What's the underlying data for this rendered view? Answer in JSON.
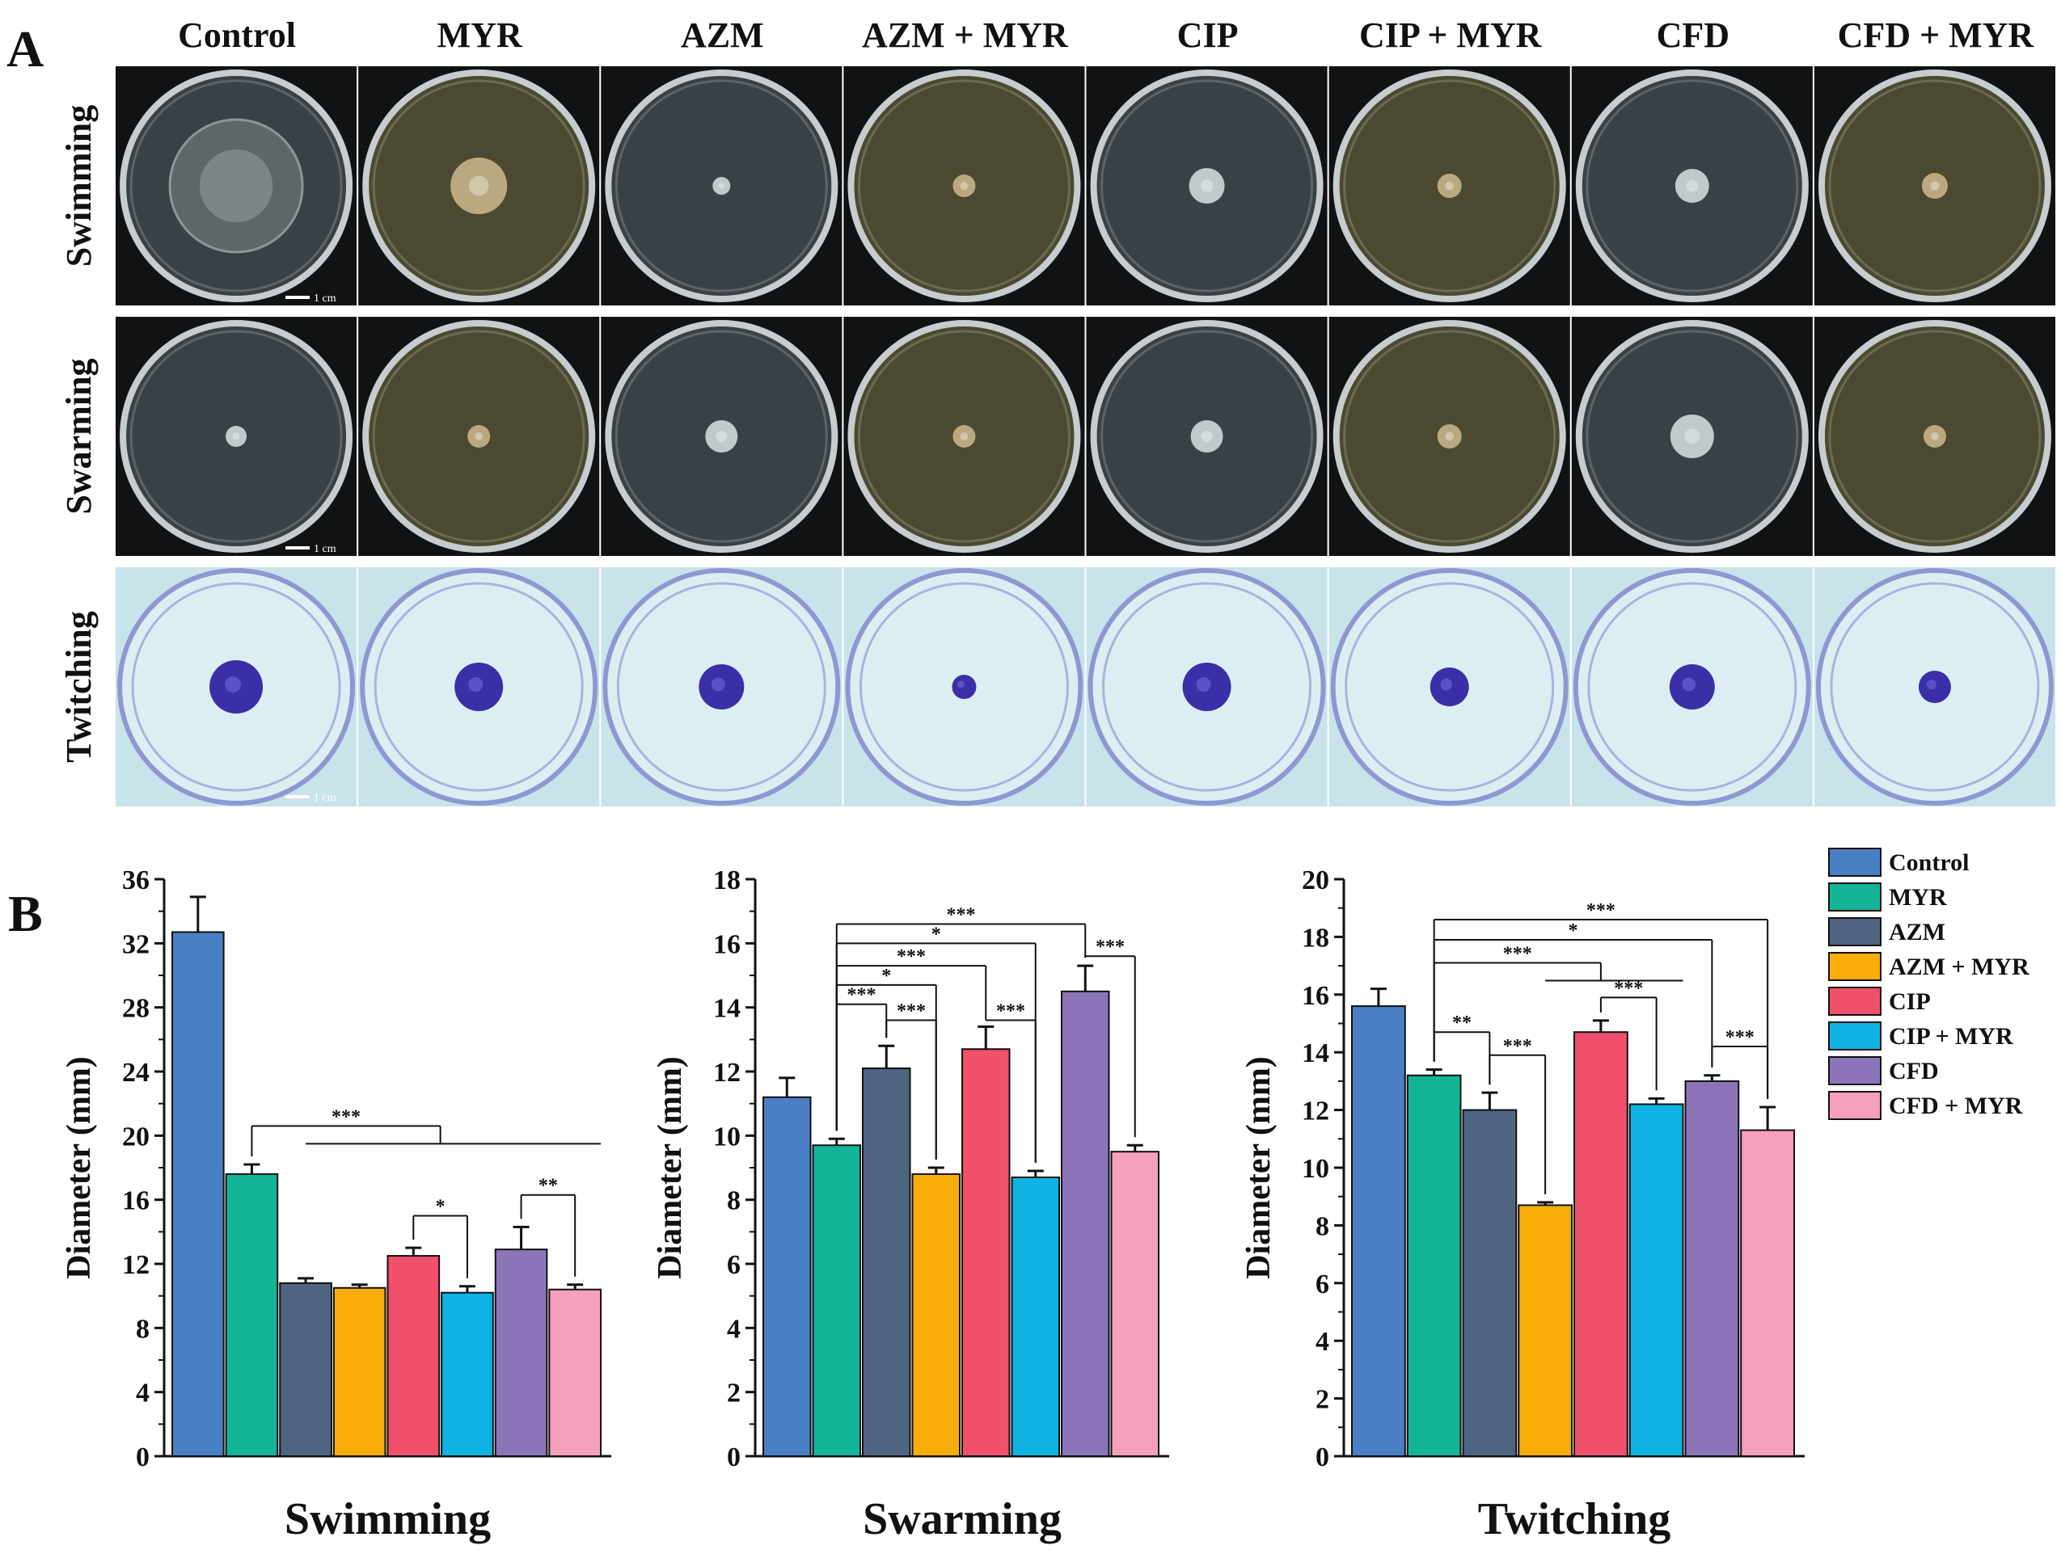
{
  "panel_a": {
    "label": "A",
    "columns": [
      "Control",
      "MYR",
      "AZM",
      "AZM +  MYR",
      "CIP",
      "CIP + MYR",
      "CFD",
      "CFD + MYR"
    ],
    "rows": [
      "Swimming",
      "Swarming",
      "Twitching"
    ],
    "scale_bar_label": "1 cm",
    "plate_colors": {
      "dark_background": "#101214",
      "twitching_background": "#c9e3ea",
      "agar_plain": "#3a4146",
      "agar_myr": "#4b4a30",
      "stain": "#3b2fa8"
    }
  },
  "panel_b": {
    "label": "B",
    "y_axis_title": "Diameter (mm)",
    "legend": [
      "Control",
      "MYR",
      "AZM",
      "AZM + MYR",
      "CIP",
      "CIP + MYR",
      "CFD",
      "CFD + MYR"
    ],
    "colors": [
      "#4a7fc4",
      "#14b497",
      "#4f6480",
      "#f8ad08",
      "#f0506a",
      "#0fb3e2",
      "#8c74b8",
      "#f6a0bb"
    ]
  },
  "chart_data": [
    {
      "type": "bar",
      "title": "Swimming",
      "xlabel": "Swimming",
      "ylabel": "Diameter (mm)",
      "ylim": [
        0,
        36
      ],
      "yticks": [
        0,
        4,
        8,
        12,
        16,
        20,
        24,
        28,
        32,
        36
      ],
      "categories": [
        "Control",
        "MYR",
        "AZM",
        "AZM + MYR",
        "CIP",
        "CIP + MYR",
        "CFD",
        "CFD + MYR"
      ],
      "values": [
        32.7,
        17.6,
        10.8,
        10.5,
        12.5,
        10.2,
        12.9,
        10.4
      ],
      "errors": [
        2.2,
        0.6,
        0.3,
        0.2,
        0.5,
        0.4,
        1.4,
        0.3
      ],
      "significance": [
        {
          "label": "***",
          "type": "fan",
          "from": 1,
          "to": [
            2,
            3,
            4,
            5,
            6,
            7
          ],
          "level": 20.6
        },
        {
          "label": "*",
          "type": "pair",
          "from": 4,
          "to": 5,
          "level": 15.0
        },
        {
          "label": "**",
          "type": "pair",
          "from": 6,
          "to": 7,
          "level": 16.3
        }
      ]
    },
    {
      "type": "bar",
      "title": "Swarming",
      "xlabel": "Swarming",
      "ylabel": "Diameter (mm)",
      "ylim": [
        0,
        18
      ],
      "yticks": [
        0,
        2,
        4,
        6,
        8,
        10,
        12,
        14,
        16,
        18
      ],
      "categories": [
        "Control",
        "MYR",
        "AZM",
        "AZM + MYR",
        "CIP",
        "CIP + MYR",
        "CFD",
        "CFD + MYR"
      ],
      "values": [
        11.2,
        9.7,
        12.1,
        8.8,
        12.7,
        8.7,
        14.5,
        9.5
      ],
      "errors": [
        0.6,
        0.2,
        0.7,
        0.2,
        0.7,
        0.2,
        0.8,
        0.2
      ],
      "significance": [
        {
          "label": "***",
          "type": "pair",
          "from": 1,
          "to": 6,
          "level": 16.6
        },
        {
          "label": "*",
          "type": "pair",
          "from": 1,
          "to": 5,
          "level": 16.0
        },
        {
          "label": "***",
          "type": "pair",
          "from": 1,
          "to": 4,
          "level": 15.3
        },
        {
          "label": "*",
          "type": "pair",
          "from": 1,
          "to": 3,
          "level": 14.7
        },
        {
          "label": "***",
          "type": "pair",
          "from": 1,
          "to": 2,
          "level": 14.1
        },
        {
          "label": "***",
          "type": "pair",
          "from": 2,
          "to": 3,
          "level": 13.6
        },
        {
          "label": "***",
          "type": "pair",
          "from": 4,
          "to": 5,
          "level": 13.6
        },
        {
          "label": "***",
          "type": "pair",
          "from": 6,
          "to": 7,
          "level": 15.6
        }
      ]
    },
    {
      "type": "bar",
      "title": "Twitching",
      "xlabel": "Twitching",
      "ylabel": "Diameter (mm)",
      "ylim": [
        0,
        20
      ],
      "yticks": [
        0,
        2,
        4,
        6,
        8,
        10,
        12,
        14,
        16,
        18,
        20
      ],
      "categories": [
        "Control",
        "MYR",
        "AZM",
        "AZM + MYR",
        "CIP",
        "CIP + MYR",
        "CFD",
        "CFD + MYR"
      ],
      "values": [
        15.6,
        13.2,
        12.0,
        8.7,
        14.7,
        12.2,
        13.0,
        11.3
      ],
      "errors": [
        0.6,
        0.2,
        0.6,
        0.1,
        0.4,
        0.2,
        0.2,
        0.8
      ],
      "significance": [
        {
          "label": "***",
          "type": "pair",
          "from": 1,
          "to": 7,
          "level": 18.6
        },
        {
          "label": "*",
          "type": "pair",
          "from": 1,
          "to": 6,
          "level": 17.9
        },
        {
          "label": "***",
          "type": "fan",
          "from": 1,
          "to": [
            3,
            5
          ],
          "level": 17.1
        },
        {
          "label": "**",
          "type": "pair",
          "from": 1,
          "to": 2,
          "level": 14.7
        },
        {
          "label": "***",
          "type": "pair",
          "from": 2,
          "to": 3,
          "level": 13.9
        },
        {
          "label": "***",
          "type": "pair",
          "from": 4,
          "to": 5,
          "level": 15.9
        },
        {
          "label": "***",
          "type": "pair",
          "from": 6,
          "to": 7,
          "level": 14.2
        }
      ]
    }
  ]
}
